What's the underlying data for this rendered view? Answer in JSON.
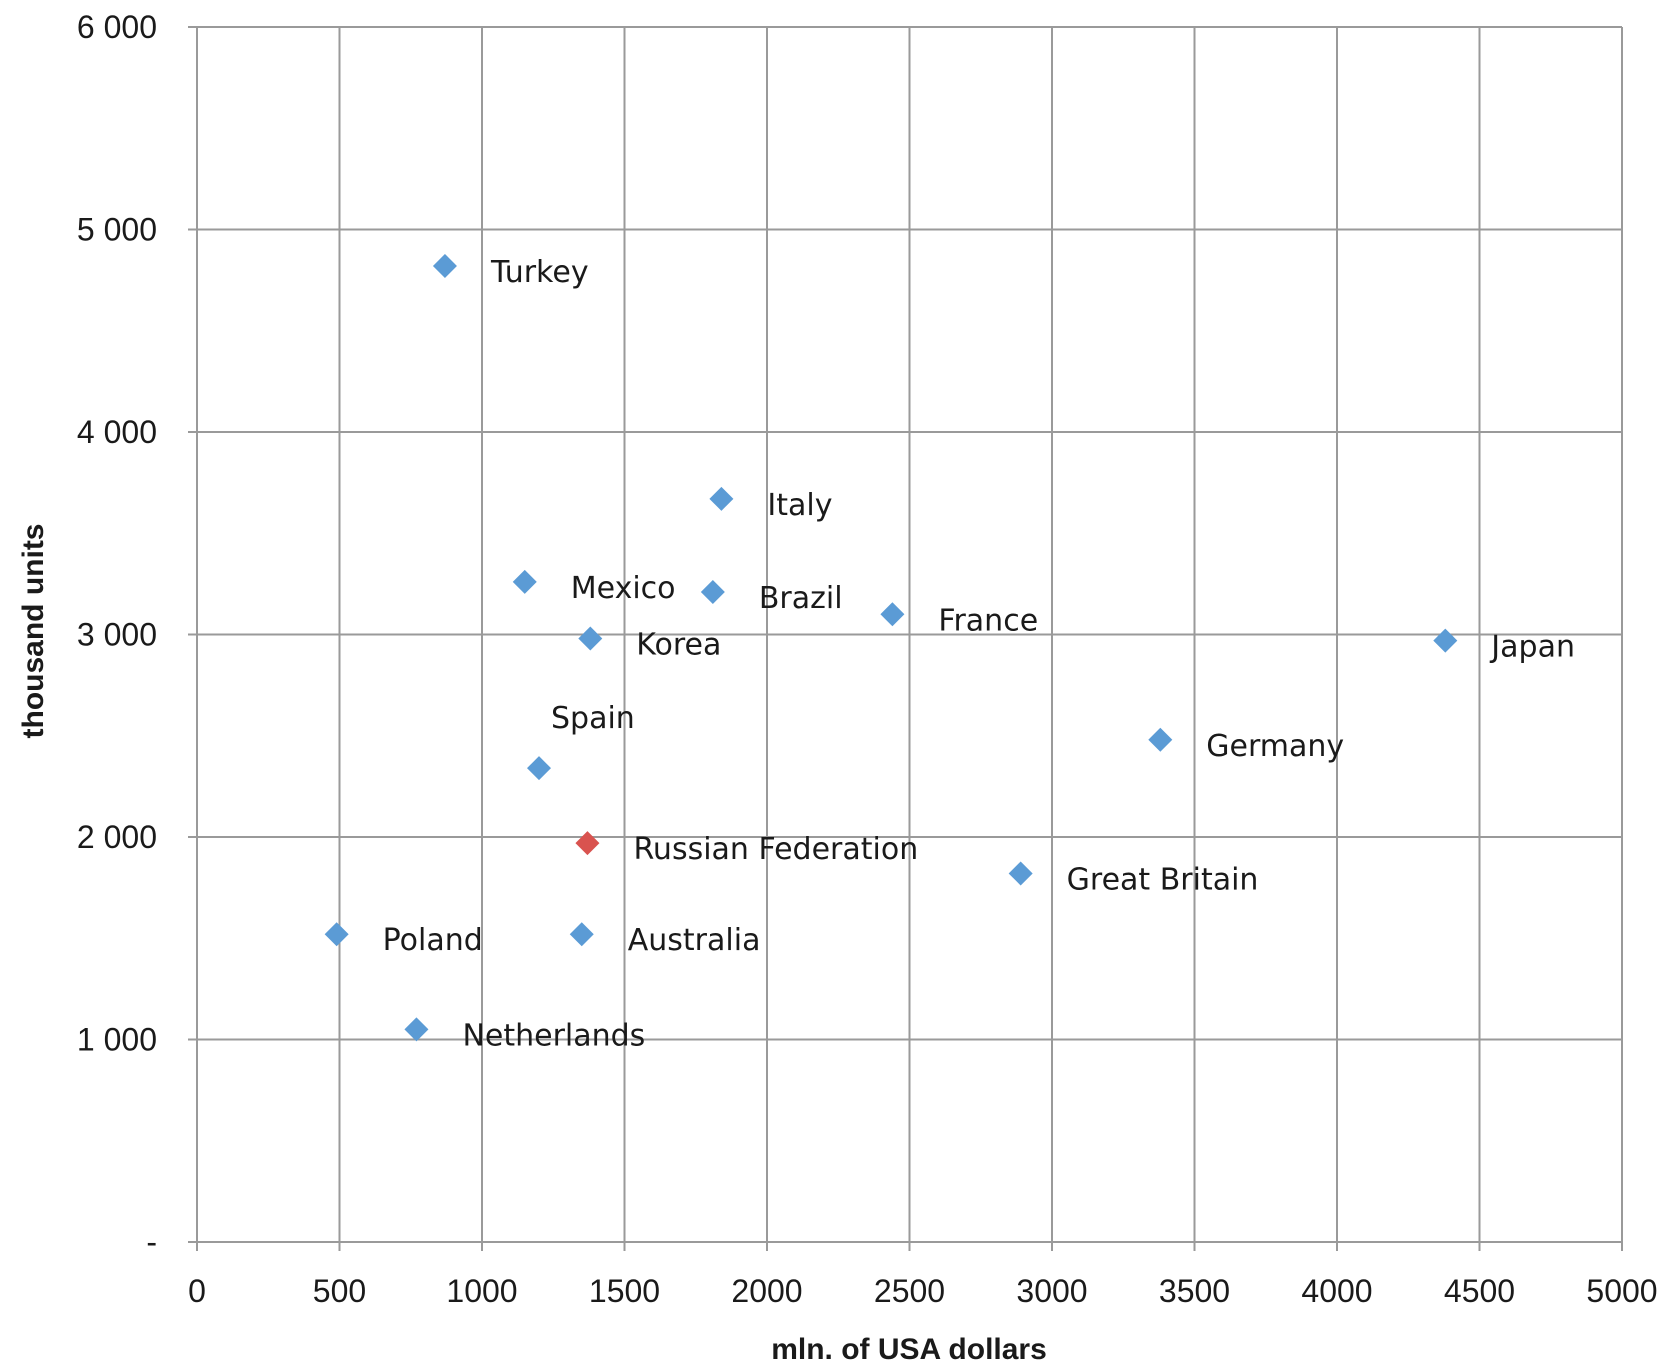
{
  "chart_data": {
    "type": "scatter",
    "title": "",
    "xlabel": "mln. of USA dollars",
    "ylabel": "thousand units",
    "xlim": [
      0,
      5000
    ],
    "ylim": [
      0,
      6000
    ],
    "x_ticks": [
      0,
      500,
      1000,
      1500,
      2000,
      2500,
      3000,
      3500,
      4000,
      4500,
      5000
    ],
    "x_tick_labels": [
      "0",
      "500",
      "1000",
      "1500",
      "2000",
      "2500",
      "3000",
      "3500",
      "4000",
      "4500",
      "5000"
    ],
    "y_ticks": [
      0,
      1000,
      2000,
      3000,
      4000,
      5000,
      6000
    ],
    "y_tick_labels": [
      "-",
      "1 000",
      "2 000",
      "3 000",
      "4 000",
      "5 000",
      "6 000"
    ],
    "grid": true,
    "legend": "none",
    "colors": {
      "default": "#5b9bd5",
      "highlight": "#d9534f"
    },
    "points": [
      {
        "label": "Turkey",
        "x": 870,
        "y": 4820,
        "highlight": false
      },
      {
        "label": "Italy",
        "x": 1840,
        "y": 3670,
        "highlight": false
      },
      {
        "label": "Mexico",
        "x": 1150,
        "y": 3260,
        "highlight": false
      },
      {
        "label": "Brazil",
        "x": 1810,
        "y": 3210,
        "highlight": false
      },
      {
        "label": "France",
        "x": 2440,
        "y": 3100,
        "highlight": false
      },
      {
        "label": "Korea",
        "x": 1380,
        "y": 2980,
        "highlight": false
      },
      {
        "label": "Japan",
        "x": 4380,
        "y": 2970,
        "highlight": false
      },
      {
        "label": "Spain",
        "x": 1200,
        "y": 2340,
        "highlight": false
      },
      {
        "label": "Germany",
        "x": 3380,
        "y": 2480,
        "highlight": false
      },
      {
        "label": "Russian Federation",
        "x": 1370,
        "y": 1970,
        "highlight": true
      },
      {
        "label": "Great Britain",
        "x": 2890,
        "y": 1820,
        "highlight": false
      },
      {
        "label": "Poland",
        "x": 490,
        "y": 1520,
        "highlight": false
      },
      {
        "label": "Australia",
        "x": 1350,
        "y": 1520,
        "highlight": false
      },
      {
        "label": "Netherlands",
        "x": 770,
        "y": 1050,
        "highlight": false
      }
    ]
  }
}
